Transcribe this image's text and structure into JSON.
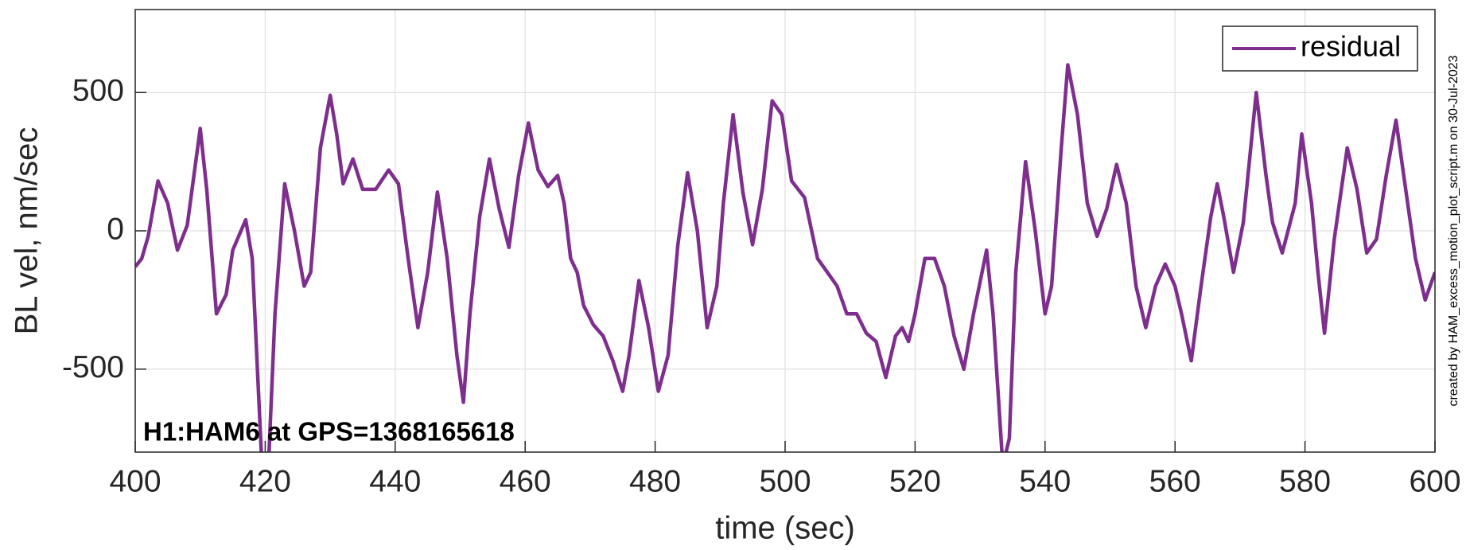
{
  "chart_data": {
    "type": "line",
    "title_annotation": "H1:HAM6 at GPS=1368165618",
    "side_note": "created by HAM_excess_motion_plot_script.m on 30-Jul-2023",
    "x_label": "time (sec)",
    "y_label": "BL vel, nm/sec",
    "x": [
      400,
      401,
      402,
      403.5,
      405,
      406.5,
      408,
      410,
      411,
      412.5,
      414,
      415,
      417,
      418,
      419.5,
      420.5,
      421.5,
      423,
      424.5,
      426,
      427,
      428.5,
      430,
      431,
      432,
      433.5,
      435,
      437,
      439,
      440.5,
      442,
      443.5,
      445,
      446.5,
      448,
      449.5,
      450.5,
      451.5,
      453,
      454.5,
      456,
      457.5,
      459,
      460.5,
      462,
      463.5,
      465,
      466,
      467,
      468,
      469,
      470.5,
      472,
      473.5,
      475,
      476,
      477.5,
      479,
      480.5,
      482,
      483.5,
      485,
      486.5,
      488,
      489.5,
      490.5,
      492,
      493.5,
      495,
      496.5,
      498,
      499.5,
      501,
      503,
      505,
      506.5,
      508,
      509.5,
      511,
      512.5,
      514,
      515.5,
      517,
      518,
      519,
      520,
      521.5,
      523,
      524.5,
      526,
      527.5,
      529,
      531,
      532,
      533.5,
      534.5,
      535.5,
      537,
      538.5,
      540,
      541,
      542.5,
      543.5,
      545,
      546.5,
      548,
      549.5,
      551,
      552.5,
      554,
      555.5,
      557,
      558.5,
      560,
      561,
      562.5,
      564,
      565.5,
      566.5,
      567.5,
      569,
      570.5,
      572.5,
      574,
      575,
      576.5,
      578.5,
      579.5,
      581,
      582,
      583,
      584.5,
      586.5,
      588,
      589.5,
      591,
      592.5,
      594,
      595.5,
      597,
      598.5,
      600
    ],
    "series": [
      {
        "name": "residual",
        "color": "#7e2f8e",
        "values": [
          -130,
          -100,
          -20,
          180,
          100,
          -70,
          20,
          370,
          150,
          -300,
          -230,
          -70,
          40,
          -100,
          -850,
          -850,
          -300,
          170,
          0,
          -200,
          -150,
          300,
          490,
          350,
          170,
          260,
          150,
          150,
          220,
          170,
          -100,
          -350,
          -150,
          140,
          -100,
          -450,
          -620,
          -300,
          50,
          260,
          80,
          -60,
          200,
          390,
          220,
          160,
          200,
          100,
          -100,
          -150,
          -270,
          -340,
          -380,
          -470,
          -580,
          -450,
          -180,
          -350,
          -580,
          -450,
          -50,
          210,
          0,
          -350,
          -200,
          100,
          420,
          140,
          -50,
          150,
          470,
          420,
          180,
          120,
          -100,
          -150,
          -200,
          -300,
          -300,
          -370,
          -400,
          -530,
          -380,
          -350,
          -400,
          -300,
          -100,
          -100,
          -200,
          -380,
          -500,
          -300,
          -70,
          -300,
          -850,
          -750,
          -150,
          250,
          0,
          -300,
          -200,
          300,
          600,
          420,
          100,
          -20,
          80,
          240,
          100,
          -200,
          -350,
          -200,
          -120,
          -200,
          -300,
          -470,
          -200,
          50,
          170,
          50,
          -150,
          30,
          500,
          200,
          30,
          -80,
          100,
          350,
          100,
          -150,
          -370,
          -30,
          300,
          150,
          -80,
          -30,
          200,
          400,
          150,
          -100,
          -250,
          -150
        ]
      }
    ],
    "xlim": [
      400,
      600
    ],
    "xticks": [
      400,
      420,
      440,
      460,
      480,
      500,
      520,
      540,
      560,
      580,
      600
    ],
    "ylim": [
      -800,
      800
    ],
    "yticks": [
      -500,
      0,
      500
    ],
    "grid": true,
    "legend": "top-right"
  }
}
